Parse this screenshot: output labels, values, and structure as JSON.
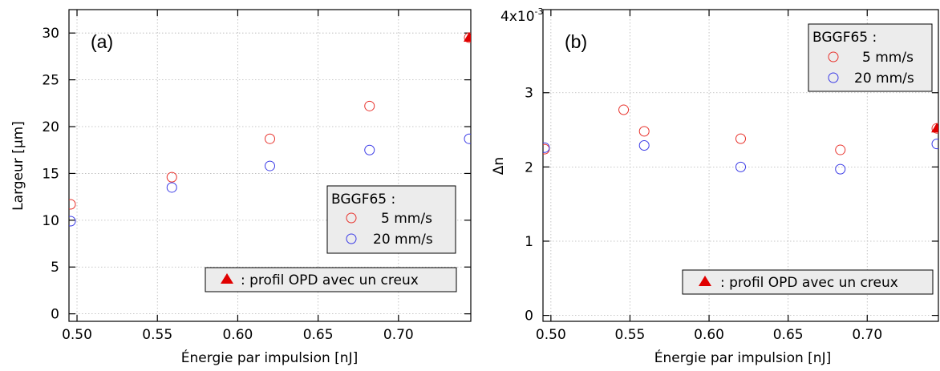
{
  "chart_data": [
    {
      "type": "scatter",
      "panel_label": "(a)",
      "xlabel": "Énergie par impulsion [nJ]",
      "ylabel": "Largeur [µm]",
      "xlim": [
        0.495,
        0.745
      ],
      "ylim": [
        -0.8,
        32.5
      ],
      "xticks": [
        "0.50",
        "0.55",
        "0.60",
        "0.65",
        "0.70"
      ],
      "xtick_values": [
        0.5,
        0.55,
        0.6,
        0.65,
        0.7
      ],
      "yticks": [
        "0",
        "5",
        "10",
        "15",
        "20",
        "25",
        "30"
      ],
      "ytick_values": [
        0,
        5,
        10,
        15,
        20,
        25,
        30
      ],
      "grid": true,
      "series": [
        {
          "name": "5 mm/s",
          "color": "#e8322c",
          "marker": "circle",
          "x": [
            0.496,
            0.559,
            0.62,
            0.682,
            0.744
          ],
          "y": [
            11.7,
            14.6,
            18.7,
            22.2,
            29.5
          ]
        },
        {
          "name": "20 mm/s",
          "color": "#3c3ce6",
          "marker": "circle",
          "x": [
            0.496,
            0.559,
            0.62,
            0.682,
            0.744
          ],
          "y": [
            9.9,
            13.5,
            15.8,
            17.5,
            18.7
          ]
        }
      ],
      "special_points": [
        {
          "x": 0.744,
          "y": 29.5,
          "marker": "filled-triangle",
          "color": "#e00000"
        }
      ],
      "legend_title": "BGGF65 :",
      "legend_position": "center-right",
      "annotation": ": profil OPD avec un creux"
    },
    {
      "type": "scatter",
      "panel_label": "(b)",
      "xlabel": "Énergie par impulsion [nJ]",
      "ylabel": "Δn",
      "xlim": [
        0.495,
        0.745
      ],
      "ylim": [
        -8e-05,
        0.00412
      ],
      "exponent_label": "4x10",
      "exponent": "-3",
      "xticks": [
        "0.50",
        "0.55",
        "0.60",
        "0.65",
        "0.70"
      ],
      "xtick_values": [
        0.5,
        0.55,
        0.6,
        0.65,
        0.7
      ],
      "yticks": [
        "0",
        "1",
        "2",
        "3"
      ],
      "ytick_values": [
        0,
        0.001,
        0.002,
        0.003
      ],
      "grid": true,
      "series": [
        {
          "name": "5 mm/s",
          "color": "#e8322c",
          "marker": "circle",
          "x": [
            0.496,
            0.546,
            0.559,
            0.62,
            0.683,
            0.744
          ],
          "y": [
            0.00224,
            0.00277,
            0.00248,
            0.00238,
            0.00223,
            0.00252
          ]
        },
        {
          "name": "20 mm/s",
          "color": "#3c3ce6",
          "marker": "circle",
          "x": [
            0.496,
            0.559,
            0.62,
            0.683,
            0.744
          ],
          "y": [
            0.00226,
            0.00229,
            0.002,
            0.00197,
            0.00231
          ]
        }
      ],
      "special_points": [
        {
          "x": 0.744,
          "y": 0.00252,
          "marker": "filled-triangle",
          "color": "#e00000"
        }
      ],
      "legend_title": "BGGF65 :",
      "legend_position": "top-right",
      "annotation": ": profil OPD avec un creux"
    }
  ]
}
